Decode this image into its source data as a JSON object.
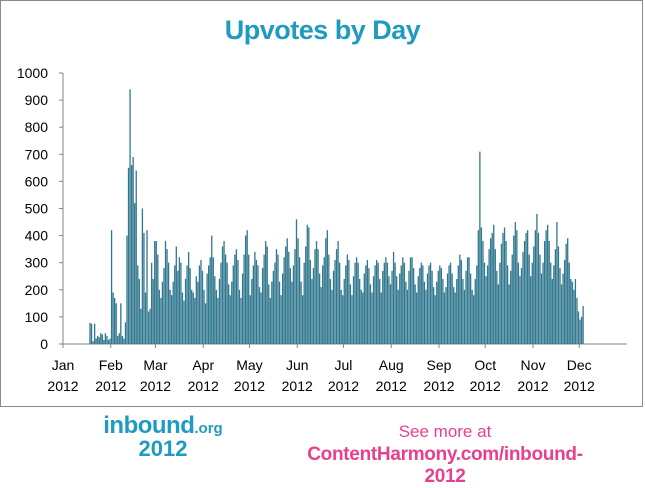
{
  "chart_data": {
    "type": "bar",
    "title": "Upvotes by Day",
    "xlabel": "",
    "ylabel": "",
    "ylim": [
      0,
      1000
    ],
    "yticks": [
      "0",
      "100",
      "200",
      "300",
      "400",
      "500",
      "600",
      "700",
      "800",
      "900",
      "1000"
    ],
    "x_start_date": "2012-01-01",
    "month_ticks": [
      {
        "line1": "Jan",
        "line2": "2012"
      },
      {
        "line1": "Feb",
        "line2": "2012"
      },
      {
        "line1": "Mar",
        "line2": "2012"
      },
      {
        "line1": "Apr",
        "line2": "2012"
      },
      {
        "line1": "May",
        "line2": "2012"
      },
      {
        "line1": "Jun",
        "line2": "2012"
      },
      {
        "line1": "Jul",
        "line2": "2012"
      },
      {
        "line1": "Aug",
        "line2": "2012"
      },
      {
        "line1": "Sep",
        "line2": "2012"
      },
      {
        "line1": "Oct",
        "line2": "2012"
      },
      {
        "line1": "Nov",
        "line2": "2012"
      },
      {
        "line1": "Dec",
        "line2": "2012"
      }
    ],
    "month_lengths": [
      31,
      29,
      31,
      30,
      31,
      30,
      31,
      31,
      30,
      31,
      30,
      31
    ],
    "bar_color": "#31788f",
    "grid": false,
    "values": [
      0,
      0,
      0,
      0,
      0,
      0,
      0,
      0,
      0,
      0,
      0,
      0,
      0,
      0,
      0,
      0,
      0,
      78,
      75,
      10,
      75,
      20,
      30,
      25,
      40,
      35,
      15,
      40,
      30,
      15,
      20,
      420,
      190,
      170,
      150,
      30,
      40,
      150,
      30,
      20,
      80,
      400,
      650,
      940,
      660,
      690,
      520,
      640,
      290,
      240,
      130,
      500,
      410,
      190,
      420,
      120,
      130,
      300,
      240,
      380,
      380,
      330,
      200,
      170,
      230,
      280,
      380,
      350,
      300,
      200,
      180,
      230,
      290,
      360,
      270,
      320,
      300,
      190,
      160,
      240,
      290,
      340,
      280,
      200,
      190,
      170,
      250,
      230,
      290,
      310,
      270,
      200,
      150,
      260,
      290,
      320,
      400,
      320,
      250,
      200,
      170,
      240,
      300,
      360,
      380,
      330,
      300,
      220,
      180,
      230,
      290,
      330,
      350,
      310,
      200,
      170,
      260,
      330,
      400,
      420,
      330,
      180,
      240,
      290,
      340,
      310,
      290,
      210,
      190,
      280,
      330,
      380,
      360,
      220,
      170,
      230,
      270,
      300,
      350,
      330,
      230,
      180,
      260,
      320,
      360,
      390,
      340,
      280,
      230,
      290,
      350,
      460,
      390,
      320,
      230,
      180,
      300,
      360,
      440,
      430,
      310,
      240,
      280,
      350,
      380,
      350,
      260,
      210,
      290,
      320,
      390,
      420,
      330,
      240,
      200,
      270,
      310,
      350,
      380,
      300,
      200,
      180,
      240,
      290,
      330,
      310,
      220,
      180,
      250,
      300,
      320,
      300,
      240,
      200,
      190,
      260,
      290,
      310,
      280,
      220,
      190,
      250,
      290,
      310,
      300,
      240,
      190,
      270,
      300,
      320,
      300,
      250,
      220,
      270,
      340,
      300,
      250,
      200,
      260,
      290,
      320,
      300,
      230,
      200,
      270,
      320,
      320,
      280,
      220,
      190,
      250,
      280,
      300,
      290,
      230,
      200,
      260,
      290,
      300,
      270,
      210,
      180,
      230,
      270,
      290,
      280,
      240,
      190,
      210,
      260,
      290,
      300,
      260,
      210,
      190,
      240,
      290,
      330,
      310,
      240,
      200,
      270,
      320,
      320,
      260,
      200,
      180,
      240,
      290,
      420,
      710,
      430,
      380,
      300,
      250,
      290,
      350,
      390,
      410,
      440,
      350,
      270,
      220,
      300,
      370,
      410,
      430,
      380,
      290,
      220,
      270,
      330,
      400,
      450,
      420,
      300,
      250,
      280,
      340,
      380,
      410,
      420,
      330,
      250,
      300,
      360,
      420,
      480,
      410,
      330,
      260,
      300,
      380,
      420,
      440,
      380,
      300,
      240,
      290,
      350,
      450,
      360,
      280,
      220,
      260,
      310,
      370,
      390,
      300,
      240,
      230,
      200,
      240,
      170,
      120,
      90,
      100,
      140
    ]
  },
  "branding": {
    "logo_word": "inbound",
    "logo_suffix": ".org",
    "logo_year": "2012",
    "promo_line1": "See more at",
    "promo_line2": "ContentHarmony.com/inbound-2012",
    "title_color": "#1f9bc0",
    "promo_color": "#e8408c"
  }
}
